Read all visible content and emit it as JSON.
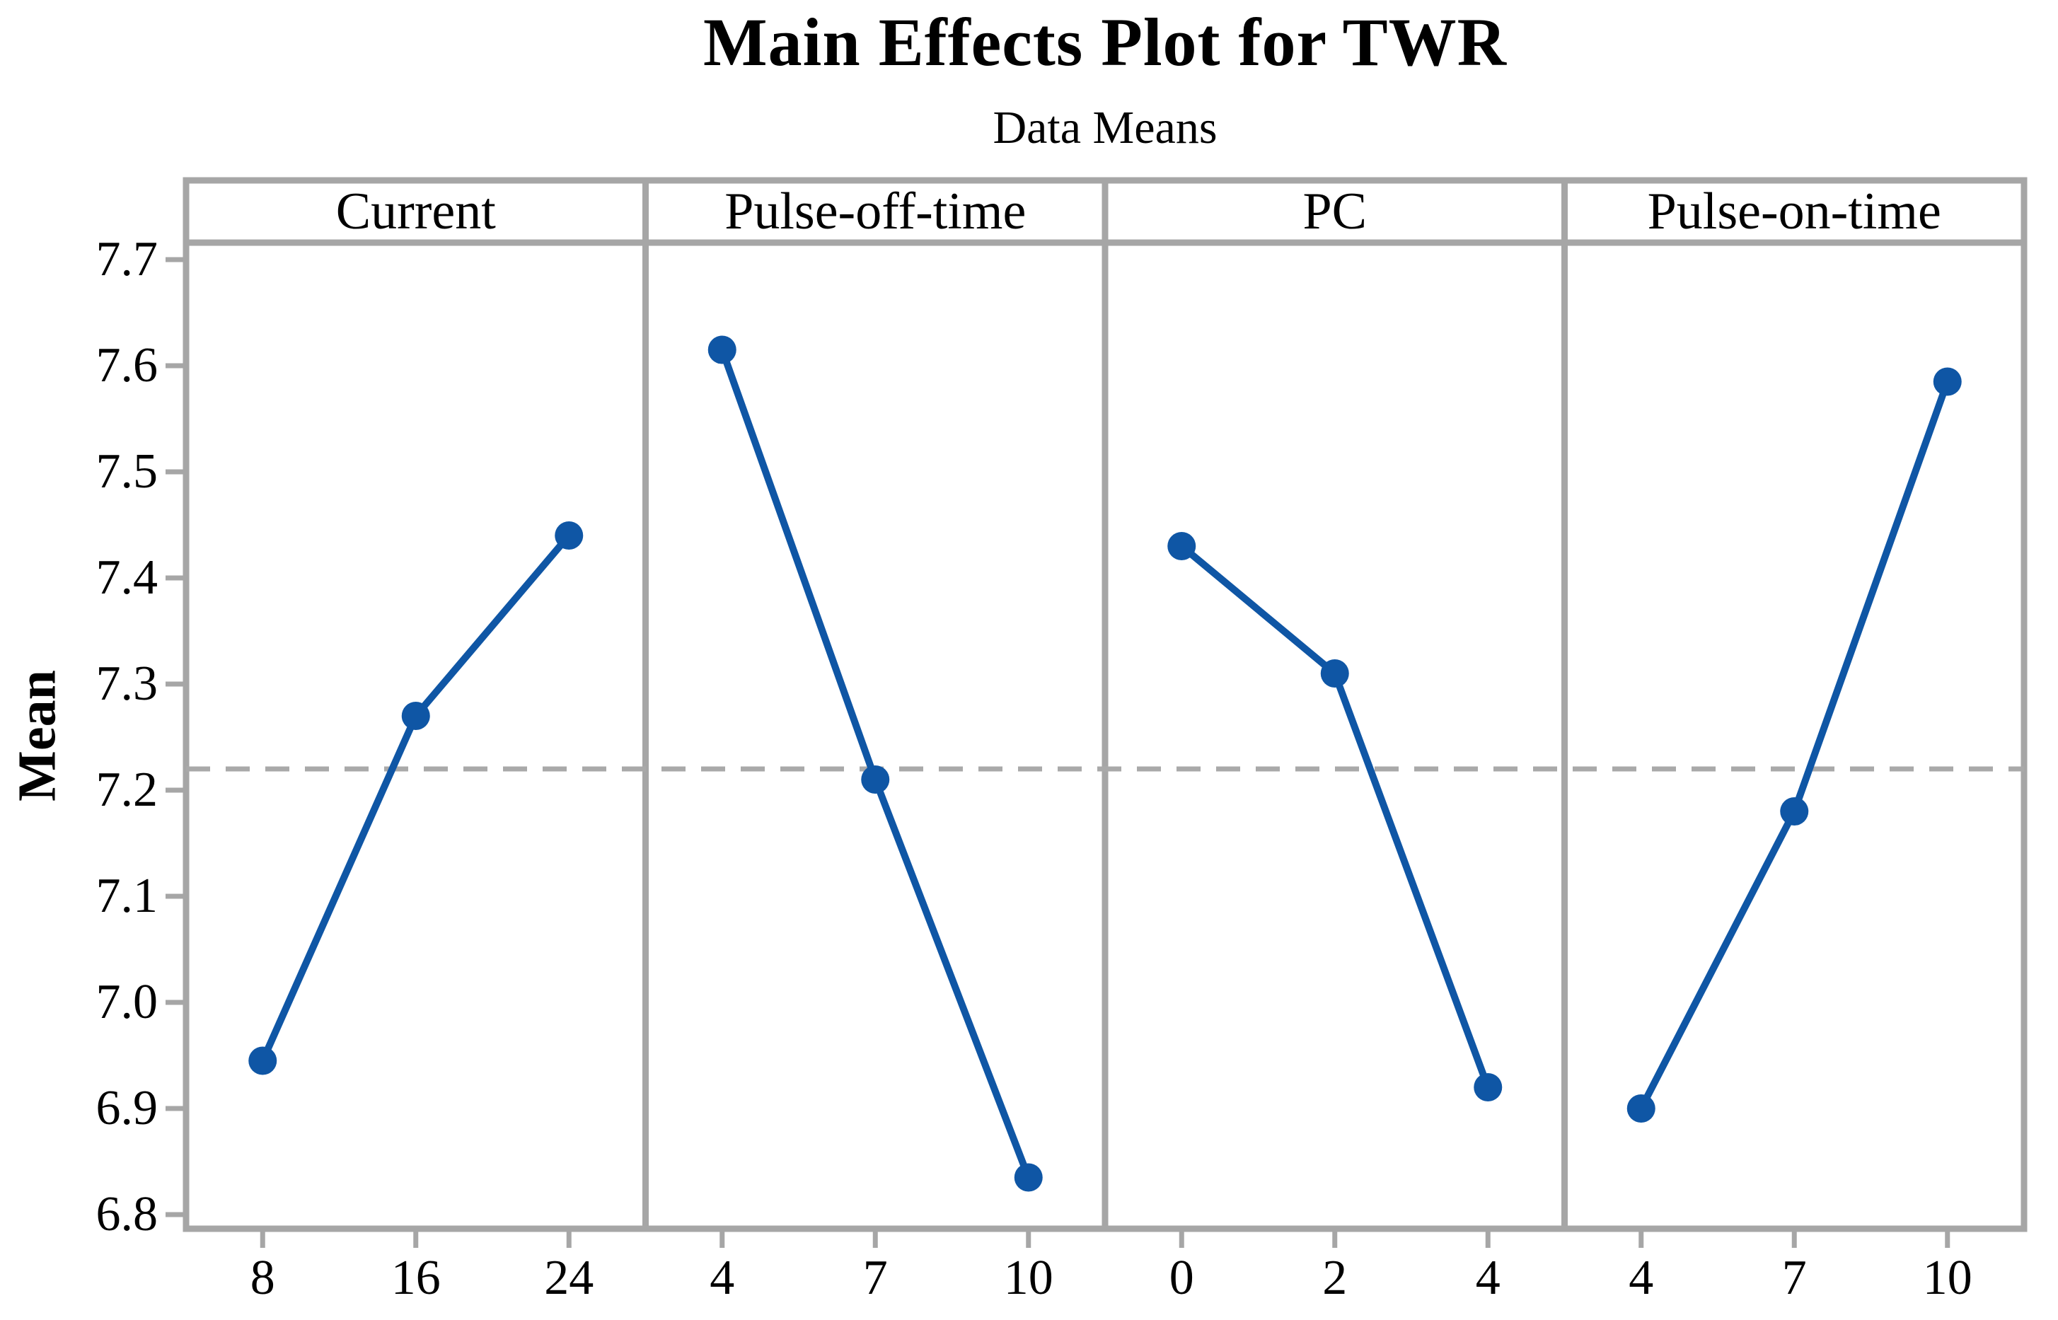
{
  "chart_data": {
    "type": "line",
    "title": "Main Effects Plot for TWR",
    "subtitle": "Data Means",
    "ylabel": "Mean",
    "yticks": [
      6.8,
      6.9,
      7.0,
      7.1,
      7.2,
      7.3,
      7.4,
      7.5,
      7.6,
      7.7
    ],
    "ylim": [
      6.787,
      7.715
    ],
    "grid": "off",
    "legend": "none",
    "reference_mean": 7.22,
    "panels": [
      {
        "label": "Current",
        "categories": [
          "8",
          "16",
          "24"
        ],
        "values": [
          6.945,
          7.27,
          7.44
        ]
      },
      {
        "label": "Pulse-off-time",
        "categories": [
          "4",
          "7",
          "10"
        ],
        "values": [
          7.615,
          7.21,
          6.835
        ]
      },
      {
        "label": "PC",
        "categories": [
          "0",
          "2",
          "4"
        ],
        "values": [
          7.43,
          7.31,
          6.92
        ]
      },
      {
        "label": "Pulse-on-time",
        "categories": [
          "4",
          "7",
          "10"
        ],
        "values": [
          6.9,
          7.18,
          7.585
        ]
      }
    ],
    "colors": {
      "series": "#0F56A5",
      "frame": "#A6A6A6",
      "reference_line": "#A9A9A9",
      "text": "#000000",
      "background": "#FFFFFF"
    }
  }
}
